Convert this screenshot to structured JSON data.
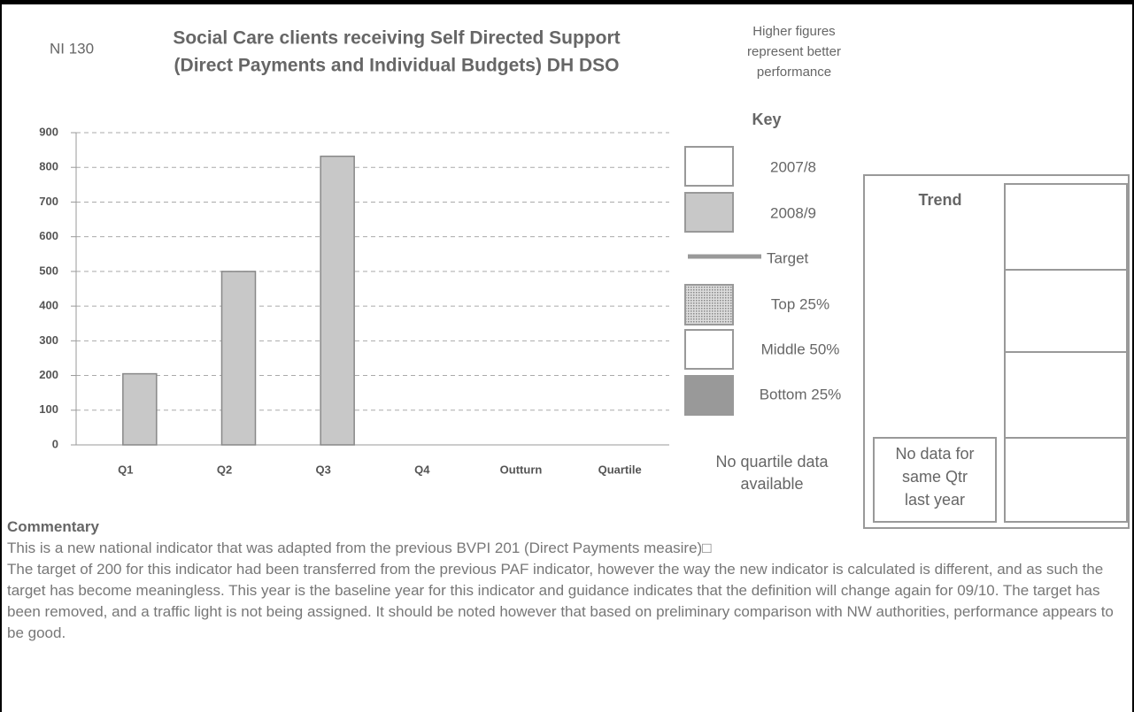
{
  "header": {
    "code": "NI 130",
    "title_lines": [
      "Social Care clients receiving Self Directed Support",
      "(Direct Payments and Individual Budgets) DH DSO"
    ],
    "note_lines": [
      "Higher figures",
      "represent better",
      "performance"
    ]
  },
  "chart_data": {
    "type": "bar",
    "categories": [
      "Q1",
      "Q2",
      "Q3",
      "Q4",
      "Outturn",
      "Quartile"
    ],
    "series": [
      {
        "name": "2007/8",
        "color": "#ffffff",
        "values": [
          null,
          null,
          null,
          null,
          null,
          null
        ]
      },
      {
        "name": "2008/9",
        "color": "#c8c8c8",
        "values": [
          205,
          500,
          832,
          null,
          null,
          null
        ]
      }
    ],
    "ylim": [
      0,
      900
    ],
    "yticks": [
      0,
      100,
      200,
      300,
      400,
      500,
      600,
      700,
      800,
      900
    ],
    "grid": true
  },
  "key": {
    "title": "Key",
    "target": "Target",
    "quartiles": [
      "Top 25%",
      "Middle 50%",
      "Bottom 25%"
    ],
    "no_quartile_lines": [
      "No quartile data",
      "available"
    ]
  },
  "trend": {
    "title": "Trend",
    "no_data_lines": [
      "No data for",
      "same Qtr",
      "last year"
    ]
  },
  "commentary": {
    "title": "Commentary",
    "paragraphs": [
      "This is a  new national indicator that was adapted from the previous BVPI 201 (Direct Payments measire)□",
      "The target of 200 for this indicator had been transferred from the previous PAF indicator, however the way the new indicator is calculated is different, and as such the target has become meaningless. This year is the baseline year for this indicator and guidance indicates that the definition will change again for 09/10. The target has been removed, and a traffic light is not being assigned. It should be noted however that based on preliminary comparison with NW authorities, performance appears to be good."
    ]
  }
}
